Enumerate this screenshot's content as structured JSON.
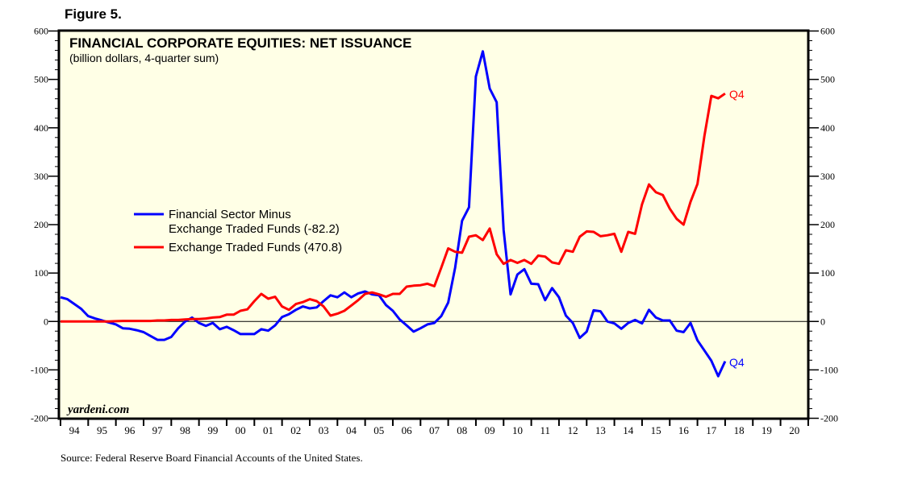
{
  "figure_label": "Figure 5.",
  "source": "Source: Federal Reserve Board Financial Accounts of the United States.",
  "watermark": "yardeni.com",
  "colors": {
    "background": "#FFFFE6",
    "blue": "#0000FF",
    "red": "#FF0000"
  },
  "chart_data": {
    "type": "line",
    "title": "FINANCIAL CORPORATE EQUITIES: NET ISSUANCE",
    "subtitle": "(billion dollars, 4-quarter sum)",
    "ylim": [
      -200,
      600
    ],
    "y_ticks": [
      "600",
      "500",
      "400",
      "300",
      "200",
      "100",
      "0",
      "-100",
      "-200"
    ],
    "x_tick_labels": [
      "94",
      "95",
      "96",
      "97",
      "98",
      "99",
      "00",
      "01",
      "02",
      "03",
      "04",
      "05",
      "06",
      "07",
      "08",
      "09",
      "10",
      "11",
      "12",
      "13",
      "14",
      "15",
      "16",
      "17",
      "18",
      "19",
      "20"
    ],
    "legend_position": "center-left",
    "x": [
      "1993Q4",
      "1994Q1",
      "1994Q2",
      "1994Q3",
      "1994Q4",
      "1995Q1",
      "1995Q2",
      "1995Q3",
      "1995Q4",
      "1996Q1",
      "1996Q2",
      "1996Q3",
      "1996Q4",
      "1997Q1",
      "1997Q2",
      "1997Q3",
      "1997Q4",
      "1998Q1",
      "1998Q2",
      "1998Q3",
      "1998Q4",
      "1999Q1",
      "1999Q2",
      "1999Q3",
      "1999Q4",
      "2000Q1",
      "2000Q2",
      "2000Q3",
      "2000Q4",
      "2001Q1",
      "2001Q2",
      "2001Q3",
      "2001Q4",
      "2002Q1",
      "2002Q2",
      "2002Q3",
      "2002Q4",
      "2003Q1",
      "2003Q2",
      "2003Q3",
      "2003Q4",
      "2004Q1",
      "2004Q2",
      "2004Q3",
      "2004Q4",
      "2005Q1",
      "2005Q2",
      "2005Q3",
      "2005Q4",
      "2006Q1",
      "2006Q2",
      "2006Q3",
      "2006Q4",
      "2007Q1",
      "2007Q2",
      "2007Q3",
      "2007Q4",
      "2008Q1",
      "2008Q2",
      "2008Q3",
      "2008Q4",
      "2009Q1",
      "2009Q2",
      "2009Q3",
      "2009Q4",
      "2010Q1",
      "2010Q2",
      "2010Q3",
      "2010Q4",
      "2011Q1",
      "2011Q2",
      "2011Q3",
      "2011Q4",
      "2012Q1",
      "2012Q2",
      "2012Q3",
      "2012Q4",
      "2013Q1",
      "2013Q2",
      "2013Q3",
      "2013Q4",
      "2014Q1",
      "2014Q2",
      "2014Q3",
      "2014Q4",
      "2015Q1",
      "2015Q2",
      "2015Q3",
      "2015Q4",
      "2016Q1",
      "2016Q2",
      "2016Q3",
      "2016Q4",
      "2017Q1",
      "2017Q2",
      "2017Q3",
      "2017Q4"
    ],
    "series": [
      {
        "name": "Financial Sector Minus",
        "name_line2": "Exchange Traded Funds (-82.2)",
        "color": "#0000FF",
        "end_label": "Q4",
        "values": [
          50,
          46,
          36,
          26,
          11,
          6,
          2,
          -2,
          -6,
          -14,
          -15,
          -18,
          -22,
          -30,
          -38,
          -38,
          -32,
          -14,
          0,
          8,
          -3,
          -9,
          -3,
          -16,
          -11,
          -18,
          -26,
          -26,
          -26,
          -16,
          -19,
          -8,
          9,
          15,
          24,
          31,
          27,
          29,
          42,
          54,
          50,
          60,
          50,
          58,
          62,
          56,
          54,
          34,
          22,
          4,
          -8,
          -21,
          -14,
          -6,
          -3,
          11,
          39,
          111,
          208,
          236,
          506,
          558,
          481,
          453,
          189,
          56,
          97,
          108,
          78,
          77,
          44,
          69,
          50,
          12,
          -3,
          -34,
          -21,
          23,
          21,
          0,
          -4,
          -15,
          -3,
          3,
          -4,
          24,
          8,
          2,
          2,
          -19,
          -22,
          -3,
          -39,
          -60,
          -81,
          -113,
          -82.2
        ]
      },
      {
        "name": "Exchange Traded Funds (470.8)",
        "color": "#FF0000",
        "end_label": "Q4",
        "values": [
          0,
          0,
          0,
          0,
          0,
          0,
          0,
          0,
          0.5,
          1,
          1,
          1,
          1,
          1,
          2,
          2,
          3,
          3,
          4,
          5,
          5,
          6,
          8,
          9,
          14,
          14,
          22,
          25,
          42,
          57,
          47,
          51,
          31,
          24,
          36,
          40,
          46,
          42,
          31,
          12,
          16,
          22,
          33,
          44,
          57,
          60,
          56,
          51,
          57,
          57,
          72,
          74,
          75,
          78,
          73,
          111,
          151,
          144,
          142,
          175,
          178,
          168,
          192,
          139,
          119,
          127,
          121,
          127,
          119,
          136,
          134,
          122,
          119,
          147,
          144,
          175,
          186,
          185,
          176,
          178,
          181,
          144,
          185,
          181,
          242,
          283,
          267,
          261,
          233,
          212,
          200,
          247,
          284,
          383,
          466,
          461,
          470.8
        ]
      }
    ]
  }
}
